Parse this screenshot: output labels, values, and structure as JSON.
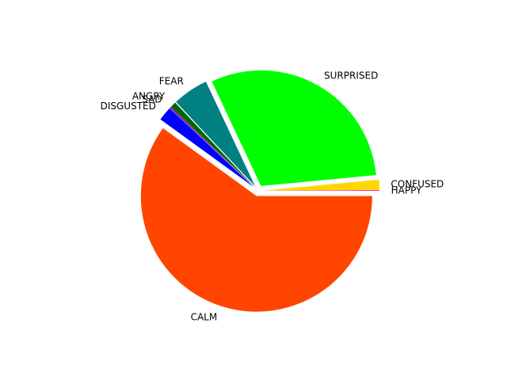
{
  "chart_data": {
    "type": "pie",
    "title": "",
    "start_angle_deg": 0,
    "direction": "counterclockwise",
    "slices": [
      {
        "label": "HAPPY",
        "value": 0.1,
        "color": "#ff1493"
      },
      {
        "label": "CONFUSED",
        "value": 1.4,
        "color": "#ffd700"
      },
      {
        "label": "SURPRISED",
        "value": 30.5,
        "color": "#00ff00"
      },
      {
        "label": "FEAR",
        "value": 5.0,
        "color": "#008080"
      },
      {
        "label": "ANGRY",
        "value": 0.8,
        "color": "#006400"
      },
      {
        "label": "SAD",
        "value": 0.2,
        "color": "#800080"
      },
      {
        "label": "DISGUSTED",
        "value": 2.0,
        "color": "#0000ff"
      },
      {
        "label": "CALM",
        "value": 60.0,
        "color": "#ff4500"
      }
    ]
  }
}
